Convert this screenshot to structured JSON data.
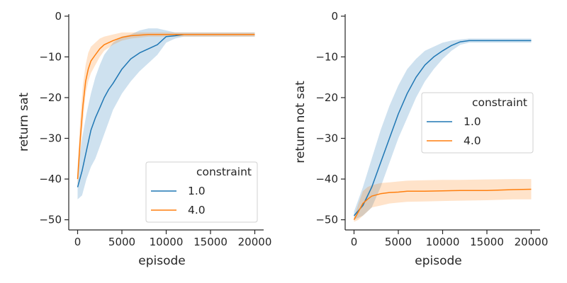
{
  "chart_data": [
    {
      "type": "line",
      "xlabel": "episode",
      "ylabel": "return sat",
      "xlim": [
        -1000,
        21000
      ],
      "ylim": [
        -52.5,
        0.5
      ],
      "xticks": [
        0,
        5000,
        10000,
        15000,
        20000
      ],
      "xtick_labels": [
        "0",
        "5000",
        "10000",
        "15000",
        "20000"
      ],
      "yticks": [
        0,
        -10,
        -20,
        -30,
        -40,
        -50
      ],
      "ytick_labels": [
        "0",
        "−10",
        "−20",
        "−30",
        "−40",
        "−50"
      ],
      "grid": false,
      "legend": {
        "title": "constraint",
        "placement": "lower-right"
      },
      "series": [
        {
          "name": "1.0",
          "color": "#1f77b4",
          "x": [
            0,
            500,
            1000,
            1500,
            2000,
            2500,
            3000,
            3500,
            4000,
            5000,
            6000,
            7000,
            8000,
            9000,
            10000,
            11000,
            12000,
            14000,
            16000,
            18000,
            20000
          ],
          "y": [
            -42,
            -38,
            -33,
            -28,
            -25,
            -22.5,
            -20,
            -18,
            -16.5,
            -13,
            -10.5,
            -9,
            -8,
            -7,
            -5,
            -4.8,
            -4.5,
            -4.5,
            -4.5,
            -4.5,
            -4.5
          ],
          "band_low": [
            -45,
            -44,
            -40,
            -37,
            -35,
            -32,
            -29,
            -26,
            -23,
            -19,
            -16,
            -13.5,
            -11.5,
            -9.5,
            -6.5,
            -5.5,
            -5,
            -5,
            -5,
            -5,
            -5
          ],
          "band_high": [
            -38,
            -30,
            -24,
            -19,
            -15,
            -12,
            -9.5,
            -8,
            -6.5,
            -5,
            -4.5,
            -3.5,
            -3,
            -3,
            -3.5,
            -4,
            -4,
            -4,
            -4,
            -4,
            -4
          ]
        },
        {
          "name": "4.0",
          "color": "#ff7f0e",
          "x": [
            0,
            300,
            600,
            900,
            1200,
            1500,
            2000,
            2500,
            3000,
            4000,
            5000,
            6000,
            8000,
            10000,
            12000,
            15000,
            18000,
            20000
          ],
          "y": [
            -40,
            -30,
            -22,
            -16,
            -13,
            -11,
            -9.5,
            -8,
            -7,
            -6,
            -5.2,
            -4.8,
            -4.5,
            -4.5,
            -4.5,
            -4.5,
            -4.5,
            -4.5
          ],
          "band_low": [
            -42,
            -34,
            -26,
            -19,
            -16,
            -14,
            -12,
            -10,
            -8.5,
            -7,
            -6,
            -5.5,
            -5,
            -5,
            -5,
            -5,
            -5,
            -5
          ],
          "band_high": [
            -37,
            -25,
            -17,
            -12,
            -9,
            -7.5,
            -6.5,
            -5.5,
            -5,
            -4.5,
            -4,
            -4,
            -4,
            -4,
            -4,
            -4,
            -4,
            -4
          ]
        }
      ]
    },
    {
      "type": "line",
      "xlabel": "episode",
      "ylabel": "return not sat",
      "xlim": [
        -1000,
        21000
      ],
      "ylim": [
        -52.5,
        0.5
      ],
      "xticks": [
        0,
        5000,
        10000,
        15000,
        20000
      ],
      "xtick_labels": [
        "0",
        "5000",
        "10000",
        "15000",
        "20000"
      ],
      "yticks": [
        0,
        -10,
        -20,
        -30,
        -40,
        -50
      ],
      "ytick_labels": [
        "0",
        "−10",
        "−20",
        "−30",
        "−40",
        "−50"
      ],
      "grid": false,
      "legend": {
        "title": "constraint",
        "placement": "center-right"
      },
      "series": [
        {
          "name": "1.0",
          "color": "#1f77b4",
          "x": [
            0,
            1000,
            2000,
            3000,
            4000,
            5000,
            6000,
            7000,
            8000,
            9000,
            10000,
            11000,
            12000,
            13000,
            15000,
            17000,
            20000
          ],
          "y": [
            -49,
            -46.5,
            -42,
            -36,
            -30,
            -24,
            -19,
            -15,
            -12,
            -10,
            -8.5,
            -7.2,
            -6.3,
            -6,
            -6,
            -6,
            -6
          ],
          "band_low": [
            -50,
            -49,
            -47,
            -42,
            -36,
            -30,
            -25,
            -20,
            -16,
            -13,
            -10.5,
            -8.5,
            -7,
            -6.5,
            -6.5,
            -6.5,
            -6.5
          ],
          "band_high": [
            -48,
            -42,
            -35,
            -28,
            -22,
            -17,
            -13,
            -10.5,
            -8.5,
            -7.5,
            -6.5,
            -6,
            -5.7,
            -5.5,
            -5.5,
            -5.5,
            -5.5
          ]
        },
        {
          "name": "4.0",
          "color": "#ff7f0e",
          "x": [
            0,
            500,
            1000,
            1500,
            2000,
            3000,
            4000,
            5000,
            6000,
            8000,
            10000,
            12000,
            15000,
            18000,
            20000
          ],
          "y": [
            -50,
            -48,
            -46,
            -45,
            -44.2,
            -43.6,
            -43.3,
            -43.2,
            -43,
            -43,
            -42.9,
            -42.8,
            -42.8,
            -42.6,
            -42.5
          ],
          "band_low": [
            -50.5,
            -50,
            -49,
            -48,
            -47,
            -46.5,
            -46,
            -45.8,
            -45.6,
            -45.5,
            -45.4,
            -45.3,
            -45.2,
            -45,
            -45
          ],
          "band_high": [
            -49.5,
            -46,
            -43,
            -42,
            -41.5,
            -41,
            -40.8,
            -40.6,
            -40.4,
            -40.3,
            -40.2,
            -40.2,
            -40.1,
            -40,
            -40
          ]
        }
      ]
    }
  ]
}
